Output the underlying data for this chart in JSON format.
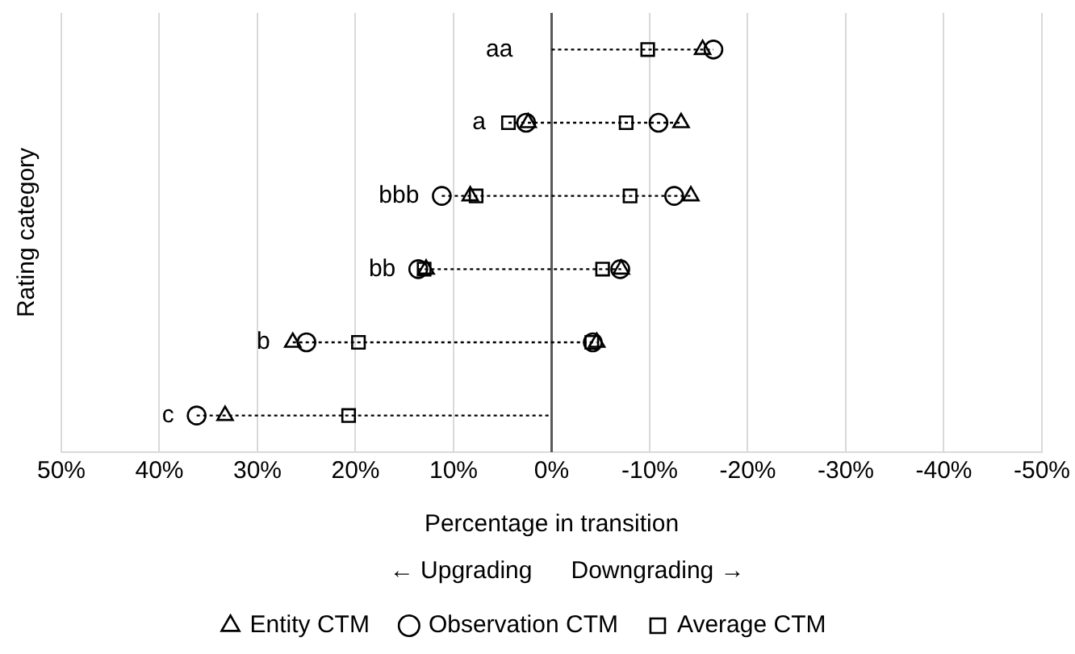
{
  "chart_data": {
    "type": "scatter",
    "orientation": "horizontal",
    "ylabel": "Rating category",
    "xlabel": "Percentage in transition",
    "annotations": [
      "← Upgrading",
      "Downgrading →"
    ],
    "categories": [
      "aa",
      "a",
      "bbb",
      "bb",
      "b",
      "c"
    ],
    "xlim": [
      50,
      -50
    ],
    "xticks": [
      {
        "value": 50,
        "label": "50%"
      },
      {
        "value": 40,
        "label": "40%"
      },
      {
        "value": 30,
        "label": "30%"
      },
      {
        "value": 20,
        "label": "20%"
      },
      {
        "value": 10,
        "label": "10%"
      },
      {
        "value": 0,
        "label": "0%"
      },
      {
        "value": -10,
        "label": "-10%"
      },
      {
        "value": -20,
        "label": "-20%"
      },
      {
        "value": -30,
        "label": "-30%"
      },
      {
        "value": -40,
        "label": "-40%"
      },
      {
        "value": -50,
        "label": "-50%"
      }
    ],
    "grid": "x",
    "legend": "bottom",
    "tick_labels": "x",
    "ref_lines": [
      {
        "axis": "x",
        "value": 0,
        "color": "#595959"
      }
    ],
    "series": [
      {
        "name": "Entity CTM",
        "color": "#000000",
        "marker": "triangle",
        "values": [
          null,
          2.4,
          8.3,
          12.8,
          26.4,
          33.3
        ]
      },
      {
        "name": "Observation CTM",
        "color": "#000000",
        "marker": "circle",
        "values": [
          null,
          2.6,
          11.2,
          13.6,
          25.0,
          36.2
        ]
      },
      {
        "name": "Average CTM",
        "color": "#000000",
        "marker": "square",
        "values": [
          null,
          4.4,
          7.7,
          13.0,
          19.7,
          20.7
        ]
      },
      {
        "color": "#000000",
        "marker": "triangle",
        "values": [
          -15.4,
          -13.2,
          -14.2,
          -7.1,
          -4.6,
          null
        ]
      },
      {
        "color": "#000000",
        "marker": "circle",
        "values": [
          -16.5,
          -10.9,
          -12.5,
          -7.0,
          -4.2,
          null
        ]
      },
      {
        "color": "#000000",
        "marker": "square",
        "values": [
          -9.8,
          -7.6,
          -8.0,
          -5.2,
          -4.1,
          null
        ]
      }
    ]
  }
}
